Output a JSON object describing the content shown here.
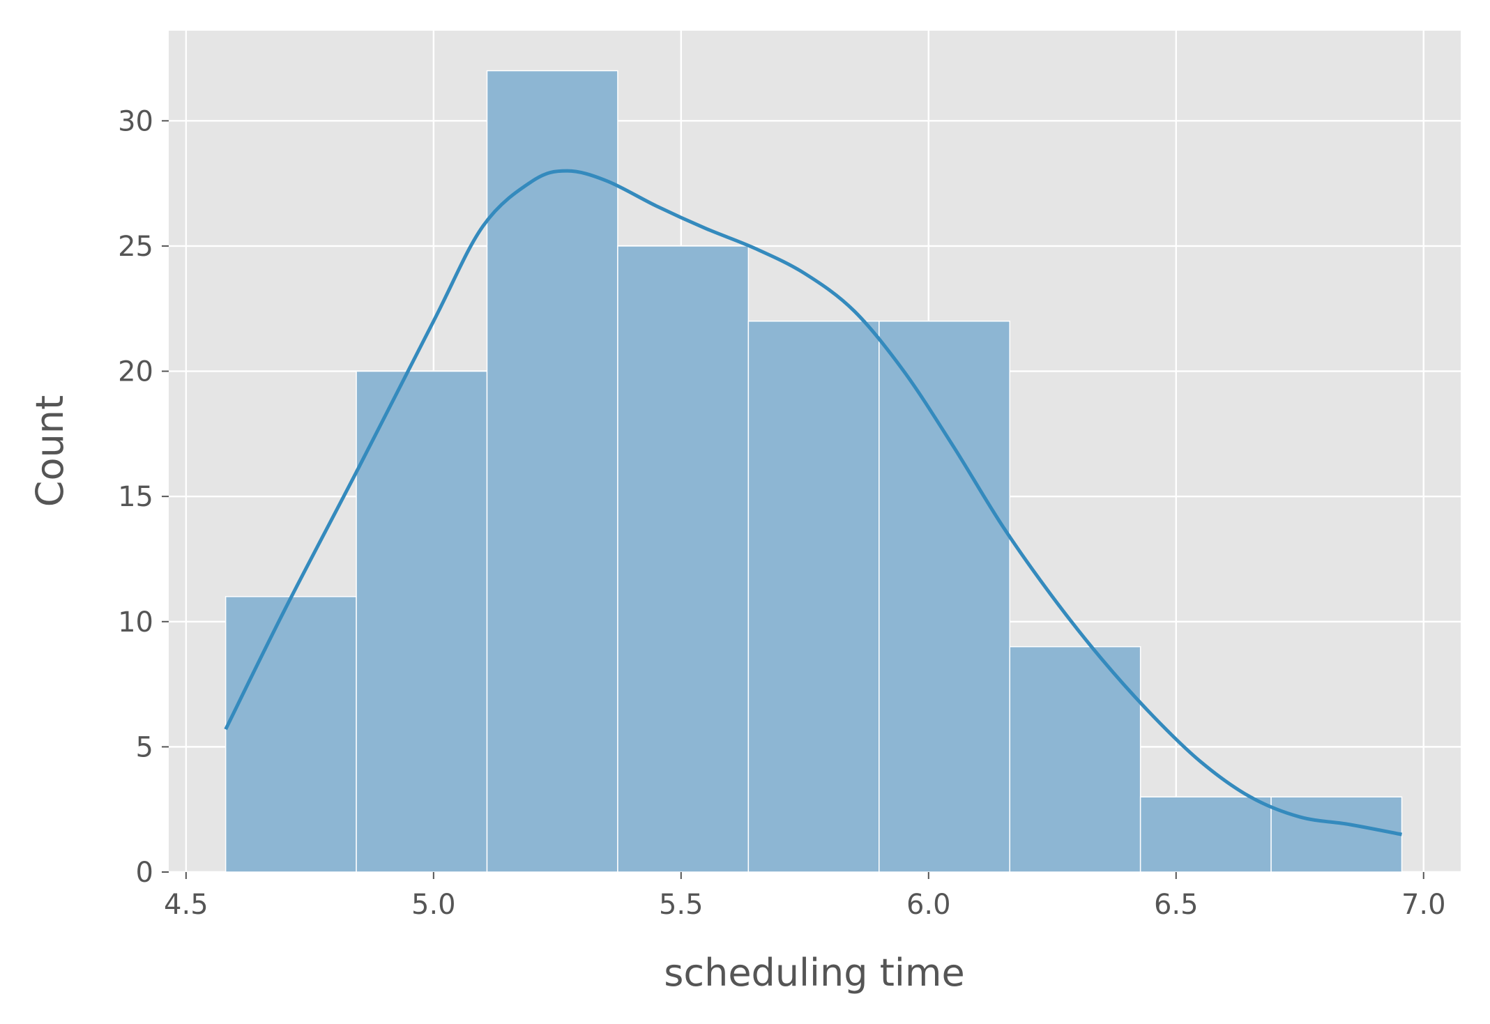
{
  "chart_data": {
    "type": "bar",
    "subtype": "histogram-with-kde",
    "title": "",
    "xlabel": "scheduling time",
    "ylabel": "Count",
    "xlim": [
      4.465,
      7.075
    ],
    "ylim": [
      0,
      33.6
    ],
    "xticks": [
      4.5,
      5.0,
      5.5,
      6.0,
      6.5,
      7.0
    ],
    "xtick_labels": [
      "4.5",
      "5.0",
      "5.5",
      "6.0",
      "6.5",
      "7.0"
    ],
    "yticks": [
      0,
      5,
      10,
      15,
      20,
      25,
      30
    ],
    "ytick_labels": [
      "0",
      "5",
      "10",
      "15",
      "20",
      "25",
      "30"
    ],
    "grid": true,
    "legend": "none",
    "bins": {
      "edges": [
        4.58,
        4.844,
        5.108,
        5.372,
        5.636,
        5.9,
        6.164,
        6.428,
        6.692,
        6.956
      ],
      "counts": [
        11,
        20,
        32,
        25,
        22,
        22,
        9,
        3,
        3
      ]
    },
    "kde": {
      "x": [
        4.58,
        4.7,
        4.85,
        5.0,
        5.1,
        5.2,
        5.27,
        5.35,
        5.45,
        5.55,
        5.65,
        5.75,
        5.85,
        5.95,
        6.05,
        6.15,
        6.25,
        6.35,
        6.45,
        6.55,
        6.65,
        6.75,
        6.85,
        6.956
      ],
      "y": [
        5.7,
        10.5,
        16.2,
        22.0,
        25.8,
        27.6,
        28.0,
        27.6,
        26.6,
        25.7,
        24.9,
        23.9,
        22.4,
        20.0,
        17.0,
        13.8,
        11.0,
        8.5,
        6.3,
        4.4,
        3.0,
        2.2,
        1.9,
        1.5
      ]
    },
    "colors": {
      "background": "#e5e5e5",
      "grid": "#ffffff",
      "bar": "#8db6d3",
      "bar_edge": "#ffffff",
      "kde_line": "#348abd",
      "text": "#555555"
    }
  }
}
